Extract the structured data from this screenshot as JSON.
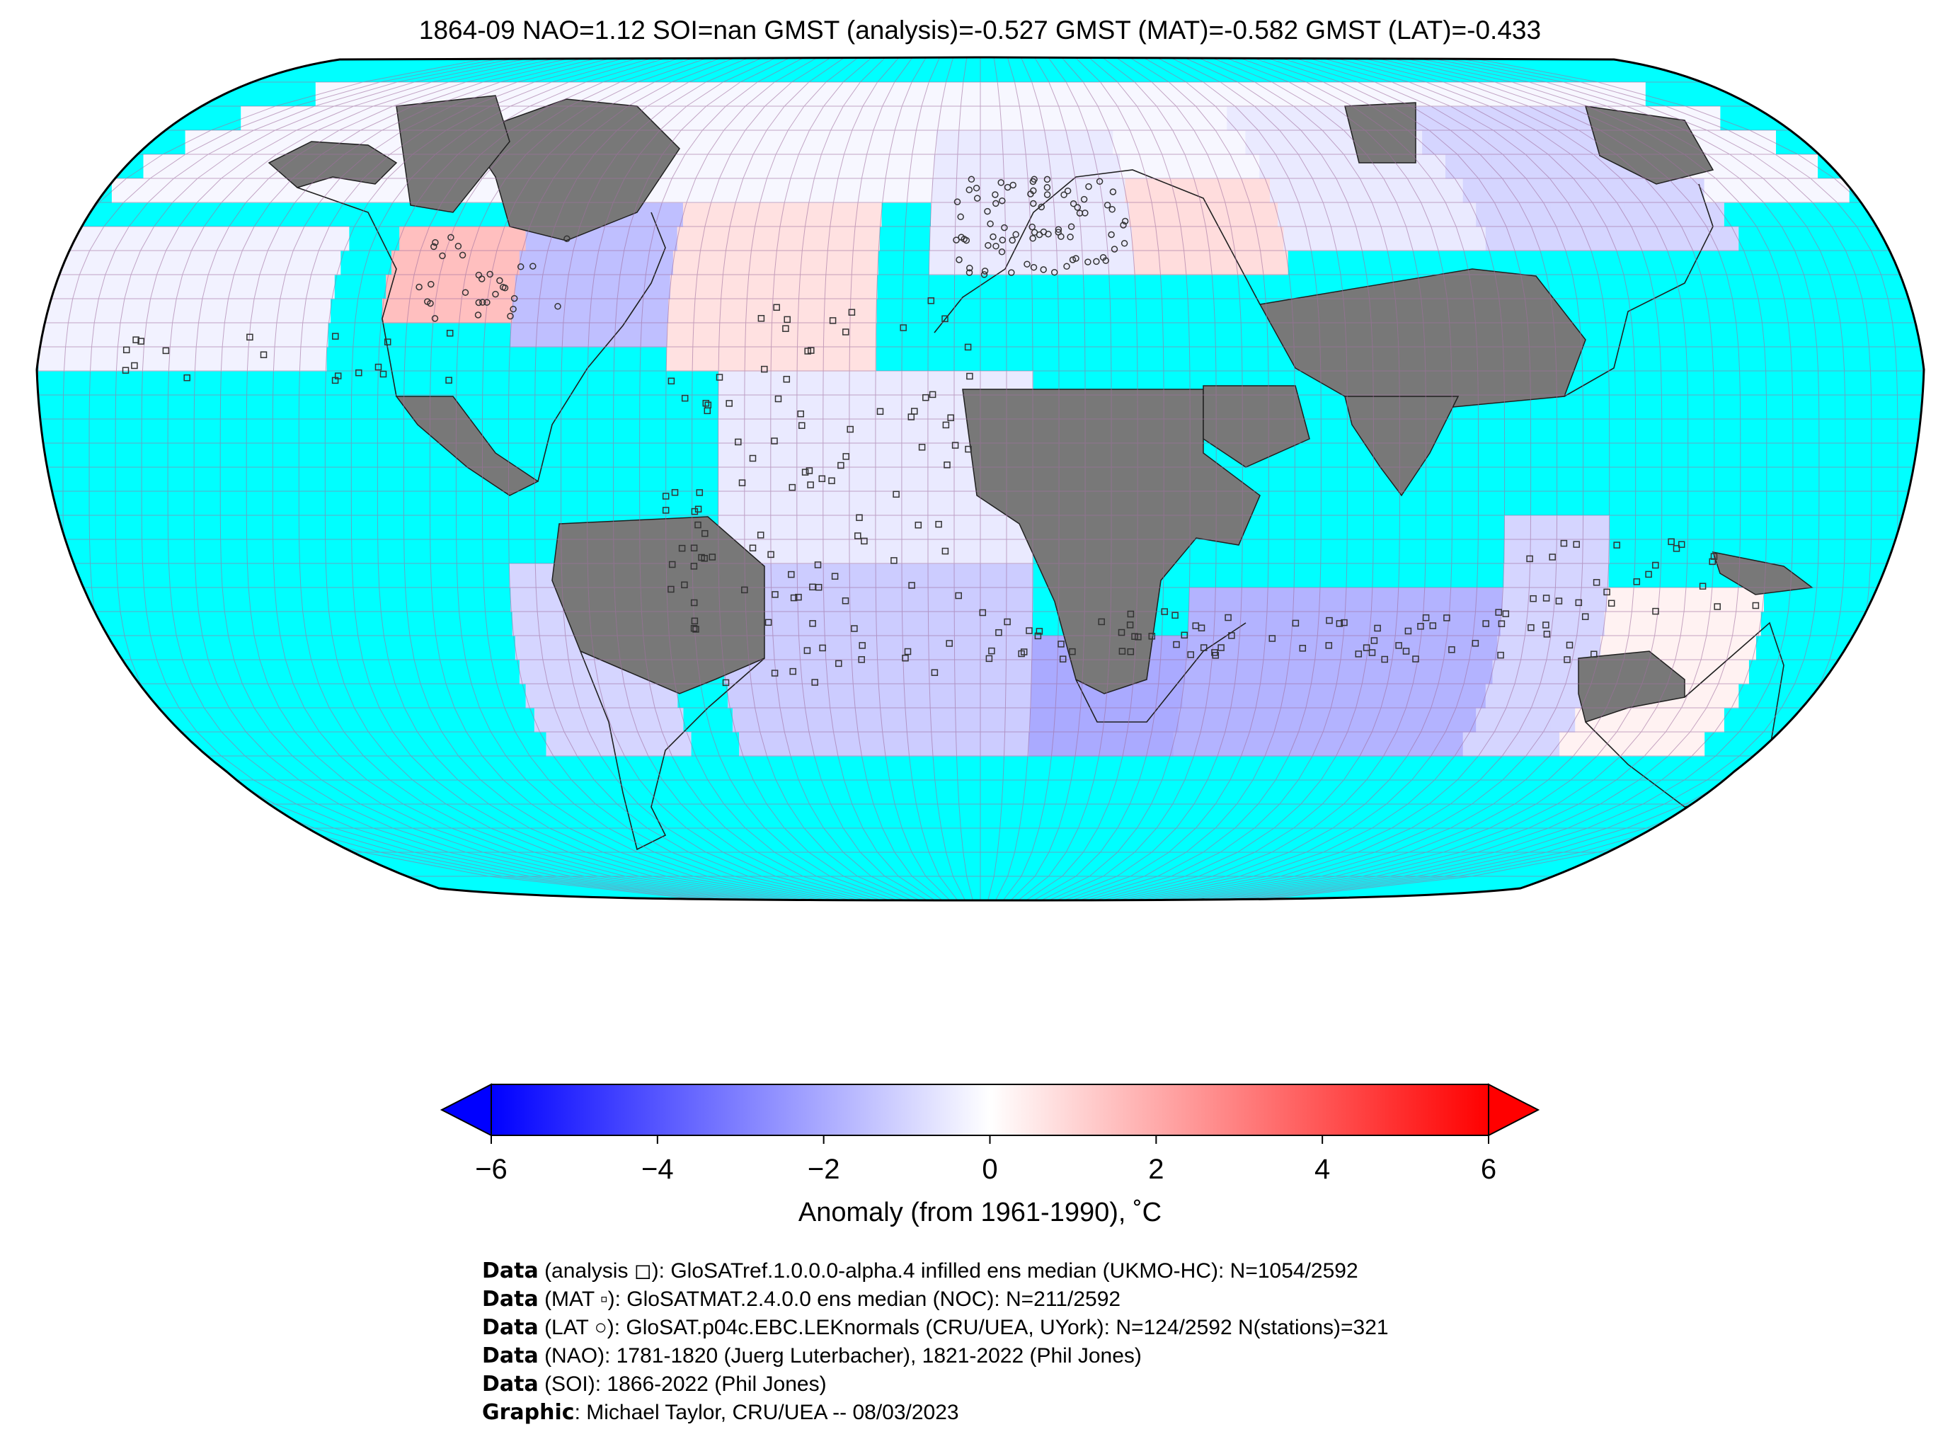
{
  "title": "1864-09 NAO=1.12 SOI=nan GMST (analysis)=-0.527 GMST (MAT)=-0.582 GMST (LAT)=-0.433",
  "colors": {
    "ocean_no_data": "#00ffff",
    "land_no_data": "#787878",
    "grid_line": "#a070a0",
    "cold": "#0000ff",
    "neutral": "#ffffff",
    "warm": "#ff0000"
  },
  "colorbar": {
    "ticks": [
      "−6",
      "−4",
      "−2",
      "0",
      "2",
      "4",
      "6"
    ],
    "tick_values": [
      -6,
      -4,
      -2,
      0,
      2,
      4,
      6
    ],
    "min": -6,
    "max": 6,
    "label": "Anomaly (from 1961-1990), ˚C"
  },
  "credits": [
    {
      "key": "Data",
      "text": " (analysis ◻): GloSATref.1.0.0.0-alpha.4 infilled ens median (UKMO-HC): N=1054/2592"
    },
    {
      "key": "Data",
      "text": " (MAT ▫): GloSATMAT.2.4.0.0 ens median (NOC): N=211/2592"
    },
    {
      "key": "Data",
      "text": " (LAT ○): GloSAT.p04c.EBC.LEKnormals (CRU/UEA, UYork): N=124/2592 N(stations)=321"
    },
    {
      "key": "Data",
      "text": " (NAO): 1781-1820 (Juerg Luterbacher), 1821-2022 (Phil Jones)"
    },
    {
      "key": "Data",
      "text": " (SOI): 1866-2022 (Phil Jones)"
    },
    {
      "key": "Graphic",
      "text": ": Michael Taylor, CRU/UEA -- 08/03/2023"
    }
  ],
  "chart_data": {
    "type": "heatmap",
    "projection": "Robinson",
    "grid_resolution_deg": 5,
    "colormap": "bwr",
    "vmin": -6,
    "vmax": 6,
    "regions_approx": [
      {
        "region": "central North America",
        "anomaly": 1.5
      },
      {
        "region": "western North Atlantic / US east coast",
        "anomaly": -1.5
      },
      {
        "region": "central North Atlantic",
        "anomaly": 0.7
      },
      {
        "region": "Europe",
        "anomaly": -0.5
      },
      {
        "region": "Eastern Europe / Black Sea",
        "anomaly": 0.8
      },
      {
        "region": "western Siberia",
        "anomaly": -0.5
      },
      {
        "region": "eastern Siberia",
        "anomaly": -1.0
      },
      {
        "region": "tropical Atlantic",
        "anomaly": -0.5
      },
      {
        "region": "South Atlantic",
        "anomaly": -1.2
      },
      {
        "region": "southern Indian Ocean",
        "anomaly": -1.8
      },
      {
        "region": "Southern Ocean south of Africa",
        "anomaly": -2.0
      },
      {
        "region": "eastern Indian Ocean",
        "anomaly": -1.0
      },
      {
        "region": "southern Australia",
        "anomaly": 0.3
      },
      {
        "region": "northern Pacific",
        "anomaly": -0.3
      },
      {
        "region": "southeast Pacific / Chile",
        "anomaly": -1.0
      }
    ]
  }
}
